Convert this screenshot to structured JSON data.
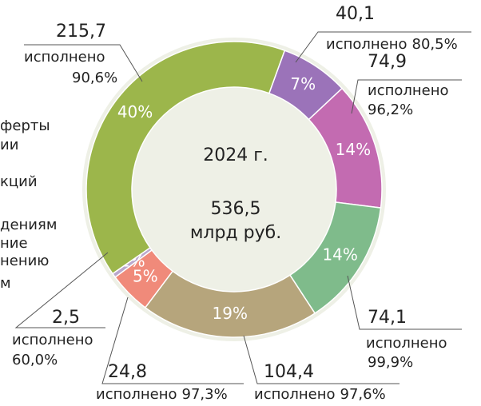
{
  "chart_data": {
    "type": "donut",
    "center_year": "2024 г.",
    "total": 536.5,
    "total_label": "536,5",
    "unit": "млрд руб.",
    "values": [
      40.1,
      74.9,
      74.1,
      104.4,
      24.8,
      2.5,
      215.7
    ],
    "value_labels": [
      "40,1",
      "74,9",
      "74,1",
      "104,4",
      "24,8",
      "2,5",
      "215,7"
    ],
    "shares": [
      {
        "value": 7,
        "label": "7%"
      },
      {
        "value": 14,
        "label": "14%"
      },
      {
        "value": 14,
        "label": "14%"
      },
      {
        "value": 19,
        "label": "19%"
      },
      {
        "value": 5,
        "label": "5%"
      },
      {
        "value": 1,
        "label": "1%"
      },
      {
        "value": 40,
        "label": "40%"
      }
    ],
    "executed_word": "исполнено",
    "executed": [
      {
        "value": 80.5,
        "label": "80,5%"
      },
      {
        "value": 96.2,
        "label": "96,2%"
      },
      {
        "value": 99.9,
        "label": "99,9%"
      },
      {
        "value": 97.6,
        "label": "97,6%"
      },
      {
        "value": 97.3,
        "label": "97,3%"
      },
      {
        "value": 60.0,
        "label": "60,0%"
      },
      {
        "value": 90.6,
        "label": "90,6%"
      }
    ],
    "colors": [
      "#9b73b9",
      "#c36bb1",
      "#7fbb8b",
      "#b6a57c",
      "#f08a7a",
      "#baa8cd",
      "#9cb64b"
    ],
    "legend_fragments": [
      "ферты",
      "ии",
      "кций",
      "дениям",
      "ние",
      "нению",
      "м"
    ]
  }
}
